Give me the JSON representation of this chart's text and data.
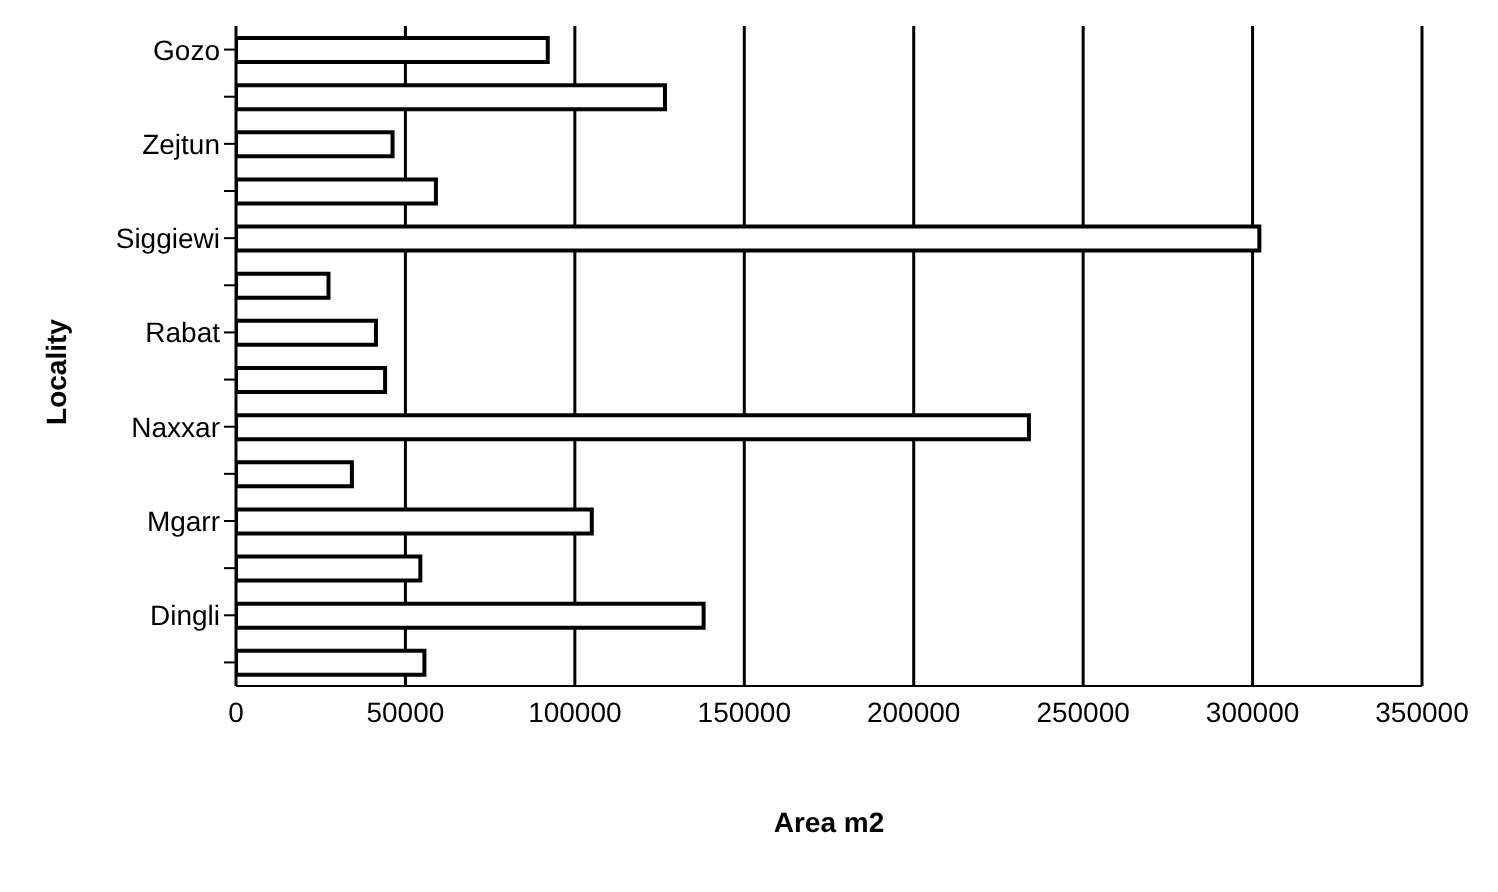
{
  "chart_data": {
    "type": "bar",
    "orientation": "horizontal",
    "xlabel": "Area m2",
    "ylabel": "Locality",
    "categories": [
      "Gozo",
      null,
      "Zejtun",
      null,
      "Siggiewi",
      null,
      "Rabat",
      null,
      "Naxxar",
      null,
      "Mgarr",
      null,
      "Dingli",
      null
    ],
    "values": [
      92000,
      126600,
      46200,
      59000,
      302000,
      27300,
      41300,
      44000,
      234000,
      34200,
      105000,
      54400,
      138000,
      55600
    ],
    "color": "#ffffff",
    "xlim": [
      0,
      350000
    ],
    "xticks": [
      0,
      50000,
      100000,
      150000,
      200000,
      250000,
      300000,
      350000
    ],
    "grid": "x"
  }
}
